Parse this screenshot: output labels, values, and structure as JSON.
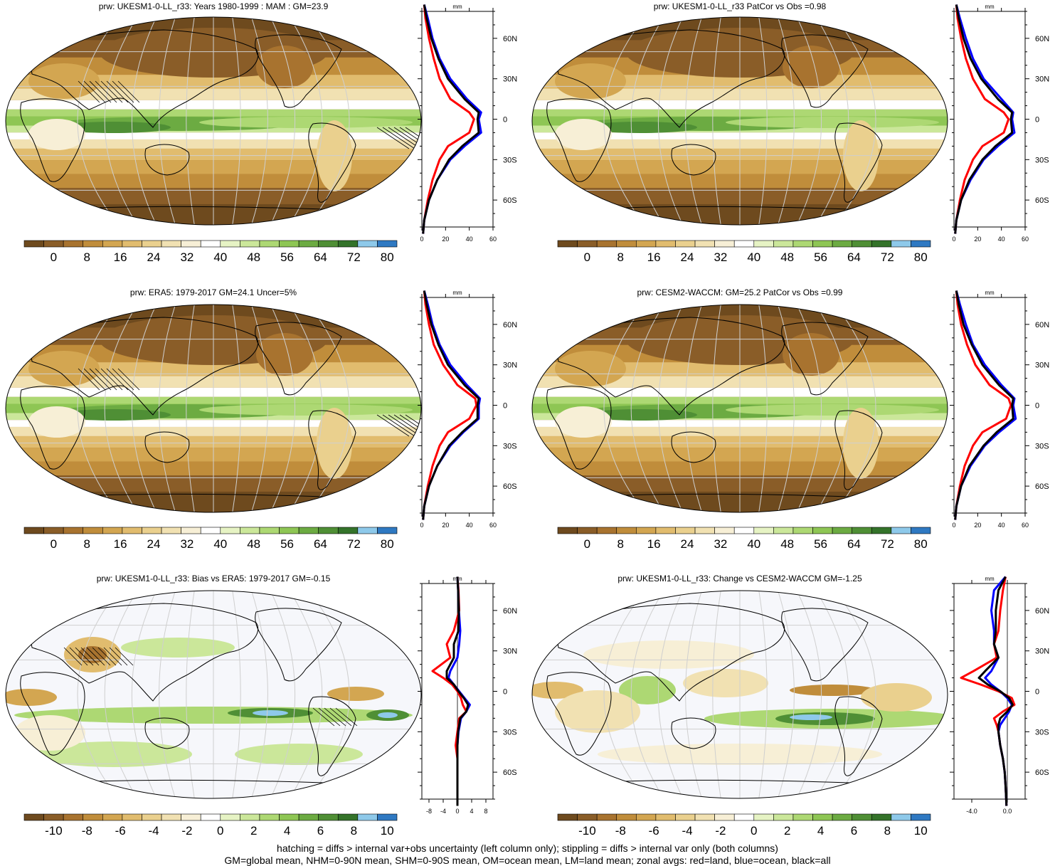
{
  "palettes": {
    "abs": [
      "#6e4a1e",
      "#8a5d28",
      "#a8732f",
      "#c08d3b",
      "#d3a651",
      "#e1bc6e",
      "#ead08e",
      "#f1e1b2",
      "#f7efd6",
      "#ffffff",
      "#e6f3c4",
      "#cbe79a",
      "#add873",
      "#8ec654",
      "#6cab42",
      "#4f8f35",
      "#34732a",
      "#8ec9ea",
      "#2f79c2"
    ],
    "diff": [
      "#6e4a1e",
      "#8a5d28",
      "#a8732f",
      "#c08d3b",
      "#d3a651",
      "#e1bc6e",
      "#ead08e",
      "#f1e1b2",
      "#f7efd6",
      "#ffffff",
      "#e6f3c4",
      "#cbe79a",
      "#add873",
      "#8ec654",
      "#6cab42",
      "#4f8f35",
      "#34732a",
      "#8ec9ea",
      "#2f79c2"
    ]
  },
  "line_colors": {
    "land": "#ff0000",
    "ocean": "#0000ff",
    "all": "#000000"
  },
  "lat_ticks": [
    "60N",
    "30N",
    "0",
    "30S",
    "60S"
  ],
  "panels": [
    {
      "title": "prw: UKESM1-0-LL_r33: Years 1980-1999 : MAM : GM=23.9",
      "kind": "abs",
      "colorbar_labels": [
        "0",
        "8",
        "16",
        "24",
        "32",
        "40",
        "48",
        "56",
        "64",
        "72",
        "80"
      ],
      "chart_data": {
        "type": "area",
        "xlabel": "mm",
        "xlim": [
          0,
          60
        ],
        "x_ticks": [
          "0",
          "20",
          "40",
          "60"
        ],
        "lat_ticks": [
          "60N",
          "30N",
          "0",
          "30S",
          "60S"
        ],
        "lat": [
          85,
          75,
          60,
          45,
          30,
          15,
          5,
          0,
          -10,
          -20,
          -30,
          -45,
          -60,
          -75,
          -85
        ],
        "series": [
          {
            "name": "land",
            "values": [
              2,
              3,
              6,
              10,
              15,
              24,
              40,
              44,
              40,
              22,
              15,
              9,
              5,
              2,
              1
            ]
          },
          {
            "name": "ocean",
            "values": [
              2,
              5,
              9,
              15,
              24,
              38,
              50,
              48,
              50,
              36,
              24,
              13,
              6,
              2,
              1
            ]
          },
          {
            "name": "all",
            "values": [
              2,
              4,
              8,
              14,
              22,
              36,
              48,
              47,
              48,
              34,
              23,
              13,
              6,
              2,
              1
            ]
          }
        ]
      }
    },
    {
      "title": "prw: UKESM1-0-LL_r33 PatCor vs Obs =0.98",
      "kind": "abs",
      "colorbar_labels": [
        "0",
        "8",
        "16",
        "24",
        "32",
        "40",
        "48",
        "56",
        "64",
        "72",
        "80"
      ],
      "chart_data": {
        "type": "area",
        "xlabel": "mm",
        "xlim": [
          0,
          60
        ],
        "x_ticks": [
          "0",
          "20",
          "40",
          "60"
        ],
        "lat_ticks": [
          "60N",
          "30N",
          "0",
          "30S",
          "60S"
        ],
        "lat": [
          85,
          75,
          60,
          45,
          30,
          15,
          5,
          0,
          -10,
          -20,
          -30,
          -45,
          -60,
          -75,
          -85
        ],
        "series": [
          {
            "name": "land",
            "values": [
              2,
              3,
              6,
              10,
              16,
              26,
              42,
              46,
              42,
              24,
              16,
              9,
              5,
              2,
              1
            ]
          },
          {
            "name": "ocean",
            "values": [
              2,
              5,
              10,
              16,
              25,
              40,
              50,
              49,
              51,
              37,
              25,
              14,
              6,
              2,
              1
            ]
          },
          {
            "name": "all",
            "values": [
              2,
              4,
              8,
              14,
              23,
              37,
              49,
              48,
              49,
              35,
              24,
              13,
              6,
              2,
              1
            ]
          }
        ]
      }
    },
    {
      "title": "prw: ERA5: 1979-2017 GM=24.1 Uncer=5%",
      "kind": "abs",
      "colorbar_labels": [
        "0",
        "8",
        "16",
        "24",
        "32",
        "40",
        "48",
        "56",
        "64",
        "72",
        "80"
      ],
      "chart_data": {
        "type": "area",
        "xlabel": "mm",
        "xlim": [
          0,
          60
        ],
        "x_ticks": [
          "0",
          "20",
          "40",
          "60"
        ],
        "lat_ticks": [
          "60N",
          "30N",
          "0",
          "30S",
          "60S"
        ],
        "lat": [
          85,
          75,
          60,
          45,
          30,
          15,
          5,
          0,
          -10,
          -20,
          -30,
          -45,
          -60,
          -75,
          -85
        ],
        "series": [
          {
            "name": "land",
            "values": [
              2,
              3,
              6,
              10,
              18,
              30,
              45,
              46,
              40,
              22,
              15,
              9,
              5,
              2,
              1
            ]
          },
          {
            "name": "ocean",
            "values": [
              2,
              5,
              9,
              15,
              24,
              38,
              49,
              48,
              48,
              35,
              24,
              13,
              6,
              2,
              1
            ]
          },
          {
            "name": "all",
            "values": [
              2,
              4,
              8,
              14,
              22,
              36,
              48,
              47,
              47,
              34,
              23,
              13,
              6,
              2,
              1
            ]
          }
        ]
      }
    },
    {
      "title": "prw: CESM2-WACCM: GM=25.2 PatCor vs Obs =0.99",
      "kind": "abs",
      "colorbar_labels": [
        "0",
        "8",
        "16",
        "24",
        "32",
        "40",
        "48",
        "56",
        "64",
        "72",
        "80"
      ],
      "chart_data": {
        "type": "area",
        "xlabel": "mm",
        "xlim": [
          0,
          60
        ],
        "x_ticks": [
          "0",
          "20",
          "40",
          "60"
        ],
        "lat_ticks": [
          "60N",
          "30N",
          "0",
          "30S",
          "60S"
        ],
        "lat": [
          85,
          75,
          60,
          45,
          30,
          15,
          5,
          0,
          -10,
          -20,
          -30,
          -45,
          -60,
          -75,
          -85
        ],
        "series": [
          {
            "name": "land",
            "values": [
              2,
              3,
              6,
              11,
              18,
              30,
              46,
              48,
              44,
              24,
              16,
              9,
              5,
              2,
              1
            ]
          },
          {
            "name": "ocean",
            "values": [
              2,
              5,
              10,
              16,
              26,
              40,
              51,
              50,
              52,
              38,
              26,
              14,
              6,
              2,
              1
            ]
          },
          {
            "name": "all",
            "values": [
              2,
              4,
              8,
              15,
              24,
              38,
              50,
              49,
              50,
              36,
              25,
              13,
              6,
              2,
              1
            ]
          }
        ]
      }
    },
    {
      "title": "prw: UKESM1-0-LL_r33: Bias vs ERA5: 1979-2017 GM=-0.15",
      "kind": "diff",
      "colorbar_labels": [
        "-10",
        "-8",
        "-6",
        "-4",
        "-2",
        "0",
        "2",
        "4",
        "6",
        "8",
        "10"
      ],
      "chart_data": {
        "type": "line",
        "xlabel": "mm",
        "xlim": [
          -10,
          10
        ],
        "x_ticks": [
          "-8",
          "-4",
          "0",
          "4",
          "8"
        ],
        "lat_ticks": [
          "60N",
          "30N",
          "0",
          "30S",
          "60S"
        ],
        "lat": [
          85,
          75,
          60,
          45,
          35,
          25,
          15,
          10,
          5,
          0,
          -5,
          -10,
          -15,
          -20,
          -30,
          -40,
          -50,
          -60,
          -70,
          -85
        ],
        "series": [
          {
            "name": "land",
            "values": [
              0,
              0.3,
              0.5,
              -1,
              -3,
              -2,
              -7,
              -4,
              -1.5,
              0,
              1,
              1.5,
              2.5,
              0.5,
              0,
              -0.5,
              0,
              0,
              0,
              0
            ]
          },
          {
            "name": "ocean",
            "values": [
              0,
              0.2,
              0.4,
              0.8,
              0.5,
              0,
              -2,
              -2.5,
              -1,
              0.5,
              2,
              3.5,
              2.5,
              1,
              0.3,
              0,
              0,
              0,
              0,
              0
            ]
          },
          {
            "name": "all",
            "values": [
              0,
              0.2,
              0.4,
              0.3,
              -1,
              -1,
              -3,
              -3,
              -1,
              0.3,
              1.8,
              3,
              2.5,
              0.8,
              0.2,
              0,
              0,
              0,
              0,
              0
            ]
          }
        ]
      }
    },
    {
      "title": "prw: UKESM1-0-LL_r33: Change vs CESM2-WACCM GM=-1.25",
      "kind": "diff",
      "colorbar_labels": [
        "-10",
        "-8",
        "-6",
        "-4",
        "-2",
        "0",
        "2",
        "4",
        "6",
        "8",
        "10"
      ],
      "chart_data": {
        "type": "line",
        "xlabel": "mm",
        "xlim": [
          -6,
          2
        ],
        "x_ticks": [
          "-4.0",
          "0.0"
        ],
        "lat_ticks": [
          "60N",
          "30N",
          "0",
          "30S",
          "60S"
        ],
        "lat": [
          85,
          75,
          60,
          45,
          35,
          25,
          15,
          10,
          5,
          0,
          -5,
          -10,
          -15,
          -20,
          -25,
          -30,
          -40,
          -50,
          -60,
          -70,
          -85
        ],
        "series": [
          {
            "name": "land",
            "values": [
              -0.2,
              -0.5,
              -0.8,
              -1,
              -1.5,
              -1.2,
              -3.8,
              -5.2,
              -3,
              -1,
              0.5,
              0.8,
              -0.5,
              -1.5,
              -1.2,
              -1,
              -0.8,
              -0.5,
              -0.3,
              -0.2,
              -0.1
            ]
          },
          {
            "name": "ocean",
            "values": [
              -0.2,
              -1.5,
              -1.8,
              -1.5,
              -1.5,
              -1,
              -1.8,
              -2.5,
              -1.8,
              -0.8,
              0,
              0.5,
              0.2,
              -0.3,
              -0.8,
              -1,
              -0.8,
              -0.5,
              -0.3,
              -0.2,
              -0.1
            ]
          },
          {
            "name": "all",
            "values": [
              -0.2,
              -1,
              -1.3,
              -1.3,
              -1.5,
              -1,
              -2.5,
              -3.2,
              -2.2,
              -0.8,
              0.2,
              0.6,
              0,
              -0.8,
              -1,
              -1,
              -0.8,
              -0.5,
              -0.3,
              -0.2,
              -0.1
            ]
          }
        ]
      }
    }
  ],
  "footer": {
    "line1": "hatching = diffs > internal var+obs uncertainty (left column only); stippling = diffs > internal var only (both columns)",
    "line2": "GM=global mean, NHM=0-90N mean, SHM=0-90S mean, OM=ocean mean, LM=land mean; zonal avgs: red=land, blue=ocean, black=all"
  }
}
